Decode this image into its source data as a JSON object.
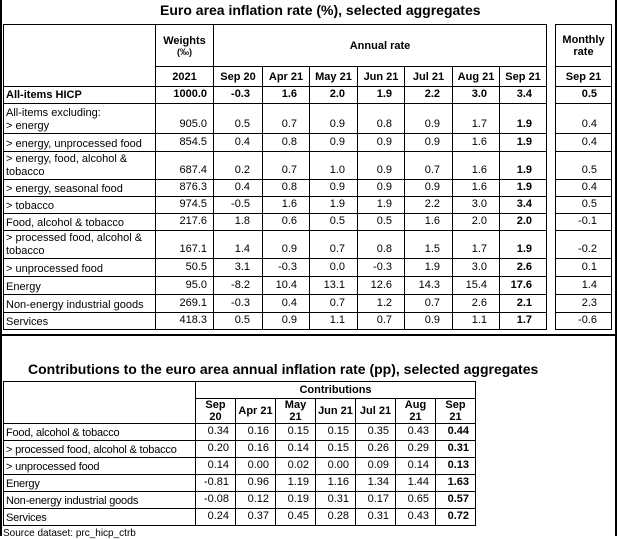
{
  "table1": {
    "title": "Euro area inflation rate (%), selected aggregates",
    "weights_header": "Weights",
    "weights_unit": "(‰)",
    "annual_header": "Annual rate",
    "monthly_header_1": "Monthly",
    "monthly_header_2": "rate",
    "weights_year": "2021",
    "months": [
      "Sep 20",
      "Apr 21",
      "May 21",
      "Jun 21",
      "Jul 21",
      "Aug 21",
      "Sep 21"
    ],
    "monthly_month": "Sep 21",
    "rows": [
      {
        "label": [
          "All-items HICP"
        ],
        "weight": "1000.0",
        "values": [
          "-0.3",
          "1.6",
          "2.0",
          "1.9",
          "2.2",
          "3.0",
          "3.4"
        ],
        "monthly": "0.5",
        "bold": true
      },
      {
        "label": [
          "All-items excluding:",
          "> energy"
        ],
        "weight": "905.0",
        "values": [
          "0.5",
          "0.7",
          "0.9",
          "0.8",
          "0.9",
          "1.7",
          "1.9"
        ],
        "monthly": "0.4"
      },
      {
        "label": [
          "> energy, unprocessed food"
        ],
        "weight": "854.5",
        "values": [
          "0.4",
          "0.8",
          "0.9",
          "0.9",
          "0.9",
          "1.6",
          "1.9"
        ],
        "monthly": "0.4"
      },
      {
        "label": [
          "> energy, food, alcohol &",
          "tobacco"
        ],
        "weight": "687.4",
        "values": [
          "0.2",
          "0.7",
          "1.0",
          "0.9",
          "0.7",
          "1.6",
          "1.9"
        ],
        "monthly": "0.5"
      },
      {
        "label": [
          "> energy, seasonal food"
        ],
        "weight": "876.3",
        "values": [
          "0.4",
          "0.8",
          "0.9",
          "0.9",
          "0.9",
          "1.6",
          "1.9"
        ],
        "monthly": "0.4"
      },
      {
        "label": [
          "> tobacco"
        ],
        "weight": "974.5",
        "values": [
          "-0.5",
          "1.6",
          "1.9",
          "1.9",
          "2.2",
          "3.0",
          "3.4"
        ],
        "monthly": "0.5"
      },
      {
        "label": [
          "Food, alcohol & tobacco"
        ],
        "weight": "217.6",
        "values": [
          "1.8",
          "0.6",
          "0.5",
          "0.5",
          "1.6",
          "2.0",
          "2.0"
        ],
        "monthly": "-0.1"
      },
      {
        "label": [
          "> processed food, alcohol &",
          "tobacco"
        ],
        "weight": "167.1",
        "values": [
          "1.4",
          "0.9",
          "0.7",
          "0.8",
          "1.5",
          "1.7",
          "1.9"
        ],
        "monthly": "-0.2"
      },
      {
        "label": [
          "> unprocessed food"
        ],
        "weight": "50.5",
        "values": [
          "3.1",
          "-0.3",
          "0.0",
          "-0.3",
          "1.9",
          "3.0",
          "2.6"
        ],
        "monthly": "0.1"
      },
      {
        "label": [
          "Energy"
        ],
        "weight": "95.0",
        "values": [
          "-8.2",
          "10.4",
          "13.1",
          "12.6",
          "14.3",
          "15.4",
          "17.6"
        ],
        "monthly": "1.4"
      },
      {
        "label": [
          "Non-energy industrial goods"
        ],
        "weight": "269.1",
        "values": [
          "-0.3",
          "0.4",
          "0.7",
          "1.2",
          "0.7",
          "2.6",
          "2.1"
        ],
        "monthly": "2.3"
      },
      {
        "label": [
          "Services"
        ],
        "weight": "418.3",
        "values": [
          "0.5",
          "0.9",
          "1.1",
          "0.7",
          "0.9",
          "1.1",
          "1.7"
        ],
        "monthly": "-0.6"
      }
    ]
  },
  "table2": {
    "title": "Contributions to the euro area annual inflation rate (pp), selected aggregates",
    "contrib_header": "Contributions",
    "months": [
      "Sep 20",
      "Apr 21",
      "May 21",
      "Jun 21",
      "Jul 21",
      "Aug 21",
      "Sep 21"
    ],
    "rows": [
      {
        "label": "Food, alcohol & tobacco",
        "values": [
          "0.34",
          "0.16",
          "0.15",
          "0.15",
          "0.35",
          "0.43",
          "0.44"
        ]
      },
      {
        "label": "> processed food, alcohol & tobacco",
        "values": [
          "0.20",
          "0.16",
          "0.14",
          "0.15",
          "0.26",
          "0.29",
          "0.31"
        ]
      },
      {
        "label": "> unprocessed food",
        "values": [
          "0.14",
          "0.00",
          "0.02",
          "0.00",
          "0.09",
          "0.14",
          "0.13"
        ]
      },
      {
        "label": "Energy",
        "values": [
          "-0.81",
          "0.96",
          "1.19",
          "1.16",
          "1.34",
          "1.44",
          "1.63"
        ]
      },
      {
        "label": "Non-energy industrial goods",
        "values": [
          "-0.08",
          "0.12",
          "0.19",
          "0.31",
          "0.17",
          "0.65",
          "0.57"
        ]
      },
      {
        "label": "Services",
        "values": [
          "0.24",
          "0.37",
          "0.45",
          "0.28",
          "0.31",
          "0.43",
          "0.72"
        ]
      }
    ]
  },
  "source": "Source dataset: prc_hicp_ctrb"
}
